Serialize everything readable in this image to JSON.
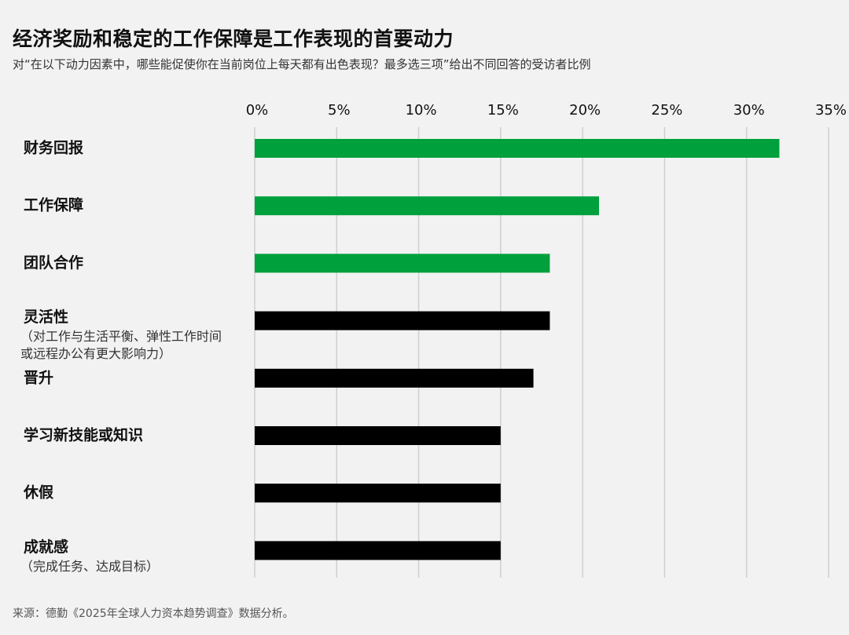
{
  "title": "经济奖励和稳定的工作保障是工作表现的首要动力",
  "subtitle": "对“在以下动力因素中，哪些能促使你在当前岗位上每天都有出色表现？最多选三项”给出不同回答的受访者比例",
  "source": "来源：德勤《2025年全球人力资本趋势调查》数据分析。",
  "colors": {
    "highlight": "#00a03c",
    "default": "#000000",
    "grid": "#cfcfcf",
    "background": "#f2f2f2"
  },
  "chart_data": {
    "type": "bar",
    "orientation": "horizontal",
    "categories": [
      "财务回报",
      "工作保障",
      "团队合作",
      "灵活性",
      "晋升",
      "学习新技能或知识",
      "休假",
      "成就感"
    ],
    "category_notes": [
      [],
      [],
      [],
      [
        "（对工作与生活平衡、弹性工作时间",
        "或远程办公有更大影响力）"
      ],
      [],
      [],
      [],
      [
        "（完成任务、达成目标）"
      ]
    ],
    "values": [
      32,
      21,
      18,
      18,
      17,
      15,
      15,
      15
    ],
    "highlighted": [
      true,
      true,
      true,
      false,
      false,
      false,
      false,
      false
    ],
    "xlim": [
      0,
      35
    ],
    "xticks": [
      0,
      5,
      10,
      15,
      20,
      25,
      30,
      35
    ],
    "xtick_labels": [
      "0%",
      "5%",
      "10%",
      "15%",
      "20%",
      "25%",
      "30%",
      "35%"
    ],
    "grid": true,
    "xlabel": "",
    "ylabel": ""
  }
}
